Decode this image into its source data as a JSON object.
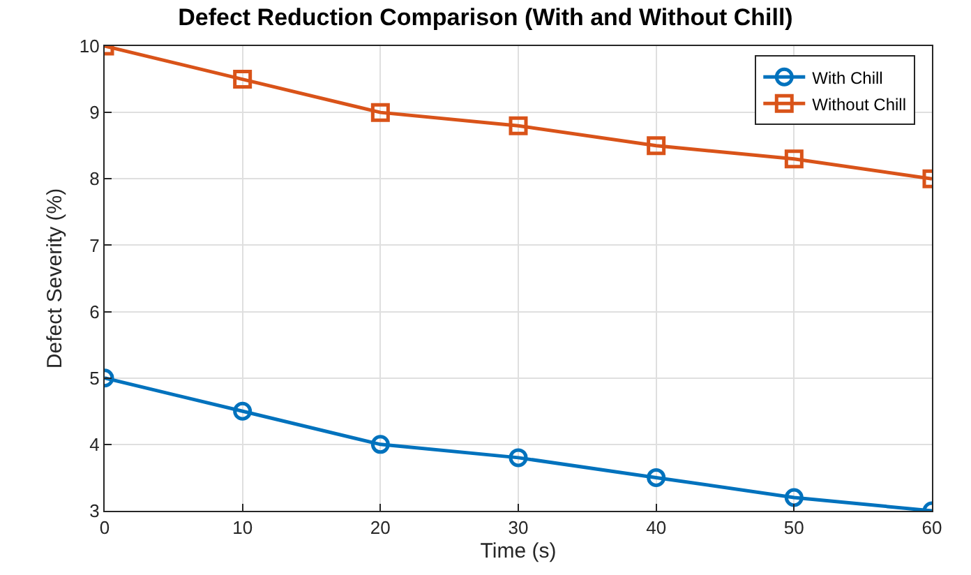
{
  "chart_data": {
    "type": "line",
    "title": "Defect Reduction Comparison (With and Without Chill)",
    "xlabel": "Time (s)",
    "ylabel": "Defect Severity (%)",
    "x": [
      0,
      10,
      20,
      30,
      40,
      50,
      60
    ],
    "series": [
      {
        "name": "With Chill",
        "color": "#0072bd",
        "marker": "circle",
        "values": [
          5,
          4.5,
          4,
          3.8,
          3.5,
          3.2,
          3
        ]
      },
      {
        "name": "Without Chill",
        "color": "#d95319",
        "marker": "square",
        "values": [
          10,
          9.5,
          9,
          8.8,
          8.5,
          8.3,
          8
        ]
      }
    ],
    "xlim": [
      0,
      60
    ],
    "xticks": [
      0,
      10,
      20,
      30,
      40,
      50,
      60
    ],
    "ylim": [
      3,
      10
    ],
    "yticks": [
      3,
      4,
      5,
      6,
      7,
      8,
      9,
      10
    ],
    "grid": true,
    "legend": "top right",
    "line_style": "solid"
  }
}
